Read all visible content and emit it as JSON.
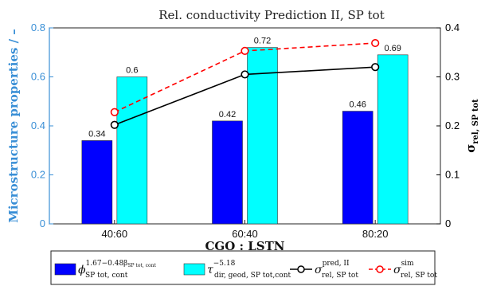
{
  "chart_data": {
    "type": "bar",
    "title": "Rel. conductivity Prediction II, SP tot",
    "xlabel": "CGO : LSTN",
    "ylabel_left": "Microstructure properties / –",
    "ylabel_right": "σ",
    "ylabel_right_sub": "rel, SP tot",
    "categories": [
      "40:60",
      "60:40",
      "80:20"
    ],
    "ylim_left": [
      0,
      0.8
    ],
    "ylim_right": [
      0,
      0.4
    ],
    "left_ticks": [
      "0",
      "0.2",
      "0.4",
      "0.6",
      "0.8"
    ],
    "right_ticks": [
      "0",
      "0.1",
      "0.2",
      "0.3",
      "0.4"
    ],
    "grid": false,
    "series": [
      {
        "kind": "bar",
        "axis": "left",
        "color": "#0000ff",
        "values": [
          0.34,
          0.42,
          0.46
        ],
        "labels": [
          "0.34",
          "0.42",
          "0.46"
        ],
        "legend_main": "ϕ",
        "legend_sup": "1.67−0.48β",
        "legend_supsub": "SP tot, cont",
        "legend_sub": "SP tot, cont"
      },
      {
        "kind": "bar",
        "axis": "left",
        "color": "#00ffff",
        "values": [
          0.6,
          0.72,
          0.69
        ],
        "labels": [
          "0.6",
          "0.72",
          "0.69"
        ],
        "legend_main": "τ",
        "legend_sup": "−5.18",
        "legend_sub": "dir, geod, SP tot,cont"
      },
      {
        "kind": "line",
        "axis": "right",
        "color": "#000000",
        "linestyle": "solid",
        "values": [
          0.202,
          0.305,
          0.32
        ],
        "legend_main": "σ",
        "legend_sup": "pred, II",
        "legend_sub": "rel, SP tot"
      },
      {
        "kind": "line",
        "axis": "right",
        "color": "#ff0000",
        "linestyle": "dashed",
        "values": [
          0.228,
          0.353,
          0.369
        ],
        "legend_main": "σ",
        "legend_sup": "sim",
        "legend_sub": "rel, SP tot"
      }
    ],
    "colors": {
      "left_axis": "#3a8fd6",
      "right_axis": "#000000"
    }
  }
}
